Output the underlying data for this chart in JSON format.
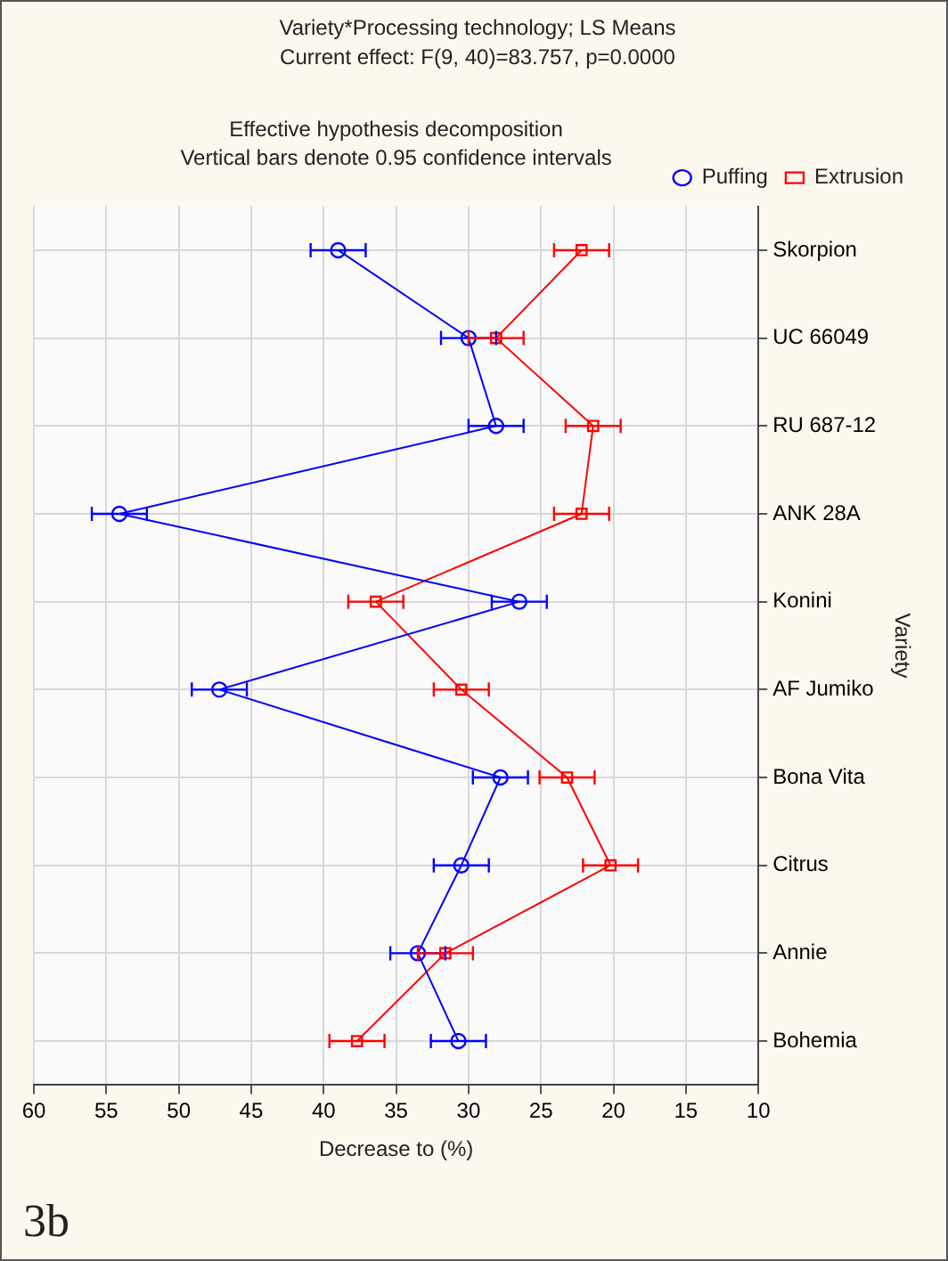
{
  "chart_data": {
    "type": "line",
    "orientation": "horizontal",
    "title": "Variety*Processing technology; LS Means",
    "subtitle": "Current effect: F(9, 40)=83.757, p=0.0000",
    "annotations": [
      "Effective hypothesis decomposition",
      "Vertical bars denote 0.95 confidence intervals",
      "3b"
    ],
    "xlabel": "Decrease to (%)",
    "ylabel": "Variety",
    "categories": [
      "Skorpion",
      "UC 66049",
      "RU 687-12",
      "ANK 28A",
      "Konini",
      "AF Jumiko",
      "Bona Vita",
      "Citrus",
      "Annie",
      "Bohemia"
    ],
    "series": [
      {
        "name": "Puffing",
        "color": "#0000ff",
        "marker": "circle",
        "values": [
          39.0,
          30.0,
          28.1,
          54.1,
          26.5,
          47.2,
          27.8,
          30.5,
          33.5,
          30.7
        ],
        "errors": [
          1.9,
          1.9,
          1.9,
          1.9,
          1.9,
          1.9,
          1.9,
          1.9,
          1.9,
          1.9
        ]
      },
      {
        "name": "Extrusion",
        "color": "#ff0000",
        "marker": "square",
        "values": [
          22.2,
          28.1,
          21.4,
          22.2,
          36.4,
          30.5,
          23.2,
          20.2,
          31.6,
          37.7
        ],
        "errors": [
          1.9,
          1.9,
          1.9,
          1.9,
          1.9,
          1.9,
          1.9,
          1.9,
          1.9,
          1.9
        ]
      }
    ],
    "xlim": [
      60,
      10
    ],
    "xticks": [
      60,
      55,
      50,
      45,
      40,
      35,
      30,
      25,
      20,
      15,
      10
    ],
    "grid": true,
    "legend": "top right"
  }
}
